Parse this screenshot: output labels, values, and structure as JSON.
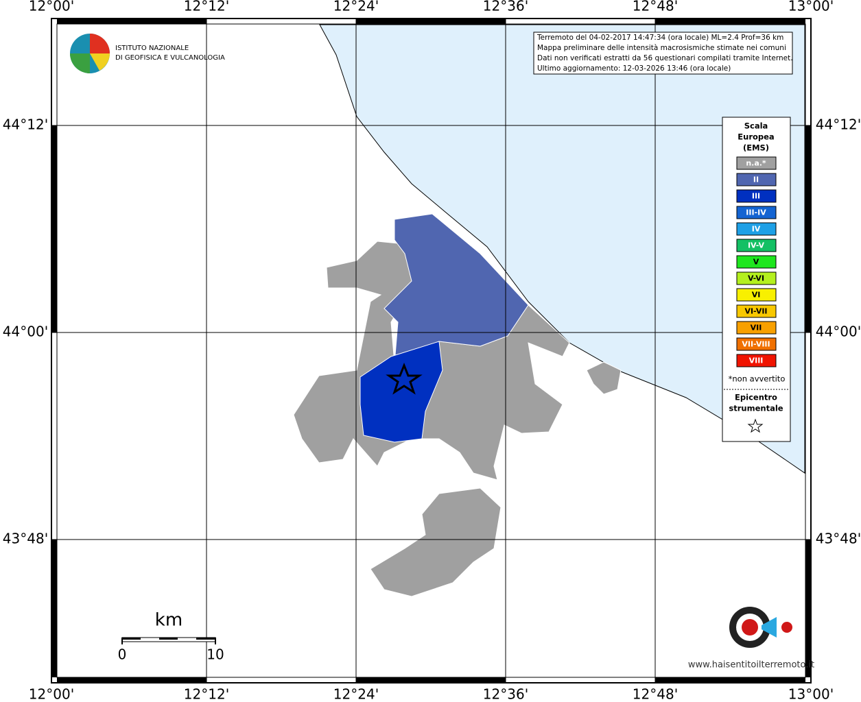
{
  "map": {
    "lon_labels": [
      "12°00'",
      "12°12'",
      "12°24'",
      "12°36'",
      "12°48'",
      "13°00'"
    ],
    "lat_labels": [
      "44°12'",
      "44°00'",
      "43°48'"
    ],
    "info": [
      "Terremoto del 04-02-2017 14:47:34 (ora locale) ML=2.4 Prof=36 km",
      "Mappa preliminare delle intensità macrosismiche stimate nei comuni",
      "Dati non verificati estratti da 56 questionari compilati tramite Internet.",
      "Ultimo aggiornamento: 12-03-2026 13:46 (ora locale)"
    ],
    "ingv": [
      "ISTITUTO NAZIONALE",
      "DI GEOFISICA E VULCANOLOGIA"
    ],
    "legend": {
      "title": [
        "Scala",
        "Europea",
        "(EMS)"
      ],
      "items": [
        {
          "label": "n.a.*",
          "color": "#a0a0a0"
        },
        {
          "label": "II",
          "color": "#5066b0"
        },
        {
          "label": "III",
          "color": "#0030c0"
        },
        {
          "label": "III-IV",
          "color": "#1464d2"
        },
        {
          "label": "IV",
          "color": "#1ea0e6"
        },
        {
          "label": "IV-V",
          "color": "#14c064"
        },
        {
          "label": "V",
          "color": "#1ee61e"
        },
        {
          "label": "V-VI",
          "color": "#b4f01e"
        },
        {
          "label": "VI",
          "color": "#f8f000"
        },
        {
          "label": "VI-VII",
          "color": "#f8c800"
        },
        {
          "label": "VII",
          "color": "#f8a000"
        },
        {
          "label": "VII-VIII",
          "color": "#f07000"
        },
        {
          "label": "VIII",
          "color": "#f01400"
        }
      ],
      "note": "*non avvertito",
      "epicenter": [
        "Epicentro",
        "strumentale"
      ]
    },
    "scale": {
      "unit": "km",
      "start": "0",
      "end": "10"
    },
    "hsit": "www.haisentitoilterremoto.it"
  }
}
